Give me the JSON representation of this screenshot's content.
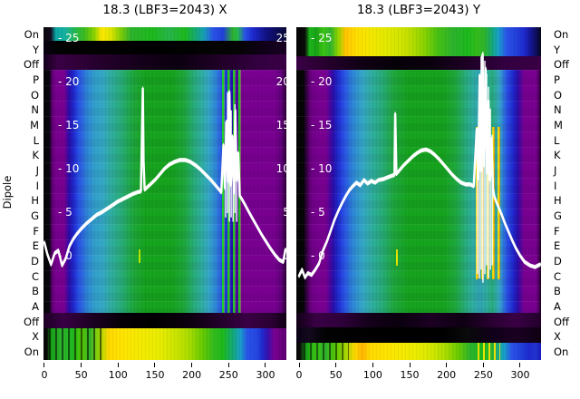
{
  "figure": {
    "title_left": "18.3 (LBF3=2043) X",
    "title_right": "18.3 (LBF3=2043) Y",
    "y_axis_label": "Dipole",
    "row_labels": [
      "On",
      "Y",
      "Off",
      "P",
      "O",
      "N",
      "M",
      "L",
      "K",
      "J",
      "I",
      "H",
      "G",
      "F",
      "E",
      "D",
      "C",
      "B",
      "A",
      "Off",
      "X",
      "On"
    ]
  },
  "palette": {
    "background": "#ffffff",
    "text": "#000000",
    "curve": "#ffffff",
    "heatmap_purple": "#7a0092",
    "heatmap_blue": "#2a52e8",
    "heatmap_cyan": "#35a8c8",
    "heatmap_teal": "#2fae9f",
    "heatmap_green": "#16a41e",
    "heatmap_yellow": "#ffe300",
    "heatmap_orange": "#ffb400",
    "heatmap_black": "#000000"
  },
  "chart_data": [
    {
      "type": "heatmap",
      "panel": "X",
      "title": "18.3 (LBF3=2043) X",
      "x_ticks": [
        0,
        50,
        100,
        150,
        200,
        250,
        300
      ],
      "x_range": [
        -1,
        329
      ],
      "rows": [
        "On",
        "Y",
        "Off",
        "P",
        "O",
        "N",
        "M",
        "L",
        "K",
        "J",
        "I",
        "H",
        "G",
        "F",
        "E",
        "D",
        "C",
        "B",
        "A",
        "Off",
        "X",
        "On"
      ],
      "line_y_ticks": [
        25,
        20,
        15,
        10,
        5,
        0
      ],
      "line_y_range": [
        -12,
        26.4
      ],
      "y_tick_labels_both_sides": true,
      "line": {
        "x": [
          0,
          4,
          9,
          14,
          19,
          24,
          29,
          34,
          39,
          44,
          50,
          57,
          64,
          71,
          78,
          85,
          92,
          99,
          106,
          113,
          120,
          126,
          131,
          133.5,
          134.5,
          136,
          140,
          145,
          151,
          157,
          163,
          170,
          177,
          184,
          191,
          198,
          205,
          212,
          219,
          226,
          233,
          240,
          243,
          245,
          247,
          249,
          251,
          253,
          255,
          257,
          259,
          261,
          263,
          265,
          268,
          272,
          277,
          283,
          289,
          295,
          301,
          307,
          313,
          319,
          324,
          327
        ],
        "y": [
          1.6,
          0.3,
          -0.9,
          0.4,
          0.7,
          -1.0,
          -0.2,
          1.2,
          2.0,
          2.6,
          3.2,
          3.8,
          4.3,
          4.8,
          5.1,
          5.5,
          5.9,
          6.3,
          6.6,
          6.9,
          7.2,
          7.4,
          7.5,
          19.3,
          11.0,
          7.7,
          8.0,
          8.4,
          8.9,
          9.5,
          10.1,
          10.6,
          10.9,
          11.1,
          11.1,
          10.9,
          10.5,
          10.0,
          9.4,
          8.8,
          8.1,
          7.4,
          12.8,
          7.9,
          15.5,
          8.6,
          18.9,
          8.2,
          13.8,
          7.4,
          16.8,
          8.7,
          11.9,
          7.0,
          6.6,
          6.0,
          5.2,
          4.3,
          3.4,
          2.5,
          1.7,
          0.9,
          0.2,
          -0.4,
          -0.6,
          0.8
        ]
      },
      "needles": [
        [
          246,
          15.5,
          4.5
        ],
        [
          248.5,
          18.9,
          5
        ],
        [
          251,
          13.2,
          4
        ],
        [
          253.5,
          16.8,
          4.5
        ],
        [
          256,
          12.0,
          4
        ],
        [
          258.5,
          17.5,
          5
        ],
        [
          261,
          11.0,
          4
        ]
      ]
    },
    {
      "type": "heatmap",
      "panel": "Y",
      "title": "18.3 (LBF3=2043) Y",
      "x_ticks": [
        0,
        50,
        100,
        150,
        200,
        250,
        300
      ],
      "x_range": [
        -4,
        328
      ],
      "rows": [
        "On",
        "Y",
        "Off",
        "P",
        "O",
        "N",
        "M",
        "L",
        "K",
        "J",
        "I",
        "H",
        "G",
        "F",
        "E",
        "D",
        "C",
        "B",
        "A",
        "Off",
        "X",
        "On"
      ],
      "line_y_ticks": [
        25,
        20,
        15,
        10,
        5,
        0
      ],
      "line_y_range": [
        -12,
        26.4
      ],
      "y_tick_labels_both_sides": false,
      "line": {
        "x": [
          0,
          4,
          8,
          12,
          17,
          22,
          27,
          32,
          38,
          43,
          48,
          53,
          58,
          63,
          68,
          73,
          78,
          83,
          88,
          93,
          98,
          103,
          108,
          114,
          120,
          126,
          129.5,
          130.5,
          132,
          136,
          142,
          148,
          154,
          160,
          166,
          172,
          178,
          184,
          190,
          196,
          202,
          208,
          214,
          220,
          226,
          232,
          237,
          241,
          243,
          245,
          247,
          249,
          251,
          253,
          255,
          257,
          259,
          261,
          263,
          265,
          268,
          271,
          275,
          279,
          284,
          289,
          294,
          300,
          306,
          313,
          320,
          327
        ],
        "y": [
          -2.2,
          -1.5,
          -2.4,
          -1.9,
          -2.1,
          -1.5,
          -0.8,
          0.6,
          1.8,
          3.0,
          4.2,
          5.2,
          6.1,
          6.9,
          7.6,
          8.1,
          8.5,
          8.2,
          8.8,
          8.4,
          8.7,
          8.5,
          8.8,
          8.9,
          9.1,
          9.3,
          9.4,
          16.4,
          9.5,
          9.9,
          10.5,
          11.0,
          11.5,
          11.9,
          12.2,
          12.3,
          12.1,
          11.7,
          11.2,
          10.6,
          10.0,
          9.4,
          8.9,
          8.5,
          8.3,
          8.3,
          8.1,
          14.6,
          9.0,
          20.8,
          9.8,
          23.2,
          10.5,
          21.6,
          9.6,
          17.9,
          8.8,
          13.5,
          7.8,
          6.9,
          6.2,
          5.6,
          4.8,
          3.9,
          2.9,
          1.9,
          1.0,
          0.1,
          -0.6,
          -1.0,
          -1.2,
          -0.9
        ]
      },
      "needles": [
        [
          242,
          14.8,
          -2
        ],
        [
          244.5,
          20.5,
          -2.5
        ],
        [
          247,
          23.0,
          -1.5
        ],
        [
          249.5,
          23.5,
          -3
        ],
        [
          252,
          22.5,
          -2
        ],
        [
          254.5,
          21.0,
          -1
        ],
        [
          257,
          19.5,
          -2.5
        ],
        [
          259.5,
          17.0,
          -1.5
        ],
        [
          262,
          14.0,
          -1
        ]
      ]
    }
  ]
}
